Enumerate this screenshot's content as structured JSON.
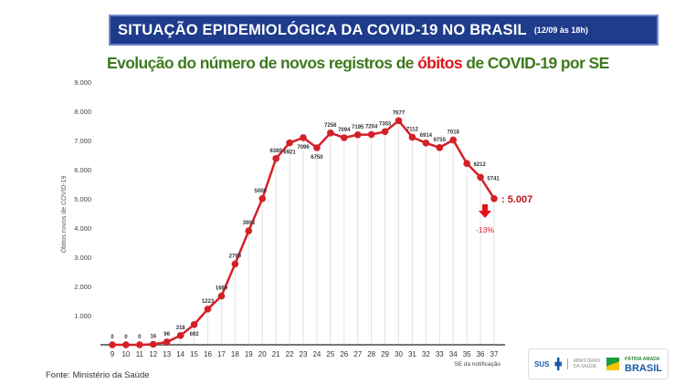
{
  "header": {
    "title": "SITUAÇÃO EPIDEMIOLÓGICA DA COVID-19 NO BRASIL",
    "subtitle": "(12/09 às 18h)"
  },
  "chart_title": {
    "part1": "Evolução do número de novos registros de ",
    "part2": "óbitos",
    "part3": " de COVID-19 por SE"
  },
  "source": "Fonte: Ministério da Saúde",
  "logos": {
    "sus": "SUS",
    "ministry": "MINISTÉRIO DA SAÚDE",
    "patria": "PÁTRIA AMADA",
    "brasil": "BRASIL"
  },
  "chart_data": {
    "type": "line",
    "xlabel": "SE da notificação",
    "ylabel": "Óbitos novos de COVID-19",
    "x": [
      9,
      10,
      11,
      12,
      13,
      14,
      15,
      16,
      17,
      18,
      19,
      20,
      21,
      22,
      23,
      24,
      25,
      26,
      27,
      28,
      29,
      30,
      31,
      32,
      33,
      34,
      35,
      36,
      37
    ],
    "values": [
      0,
      0,
      0,
      16,
      96,
      318,
      692,
      1223,
      1669,
      2769,
      3903,
      5006,
      6380,
      6921,
      7096,
      6750,
      7256,
      7094,
      7195,
      7204,
      7303,
      7677,
      7112,
      6914,
      6755,
      7018,
      6212,
      5741,
      5007
    ],
    "yticks": [
      "1.000",
      "2.000",
      "3.000",
      "4.000",
      "5.000",
      "6.000",
      "7.000",
      "8.000",
      "9.000"
    ],
    "ylim": [
      0,
      9000
    ],
    "grid": "vertical lines",
    "color": "#d42027",
    "annotation": {
      "last_value": "5.007",
      "change": "-13%",
      "icon": "arrow-down-icon"
    }
  }
}
